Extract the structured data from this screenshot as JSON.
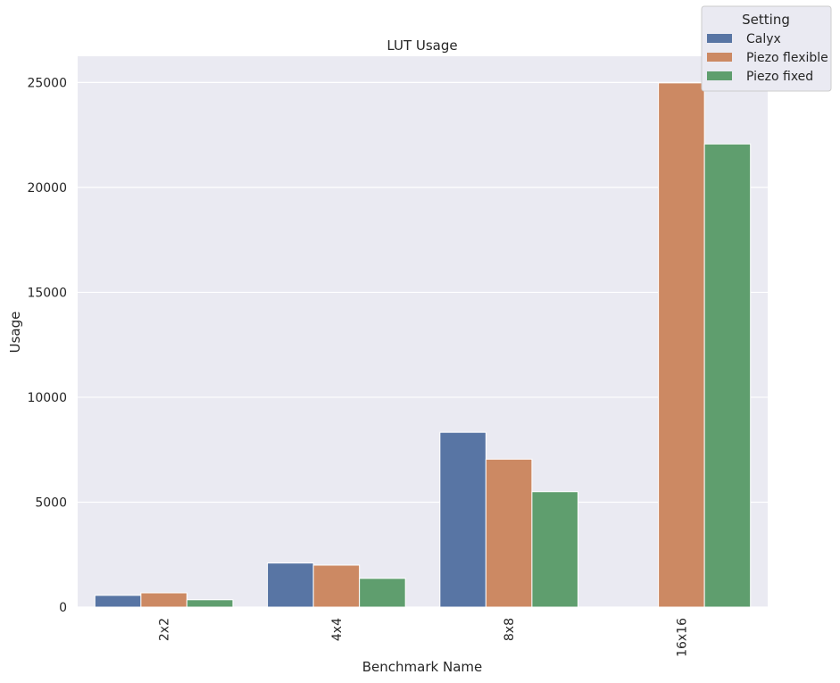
{
  "chart_data": {
    "type": "bar",
    "title": "LUT Usage",
    "xlabel": "Benchmark Name",
    "ylabel": "Usage",
    "categories": [
      "2x2",
      "4x4",
      "8x8",
      "16x16"
    ],
    "series": [
      {
        "name": "Calyx",
        "color": "#5875a4",
        "values": [
          560,
          2100,
          8330,
          0
        ]
      },
      {
        "name": "Piezo flexible",
        "color": "#cc8963",
        "values": [
          680,
          2000,
          7050,
          24980
        ]
      },
      {
        "name": "Piezo fixed",
        "color": "#5f9e6e",
        "values": [
          350,
          1370,
          5500,
          22070
        ]
      }
    ],
    "ylim": [
      0,
      26250
    ],
    "yticks": [
      0,
      5000,
      10000,
      15000,
      20000,
      25000
    ],
    "grid": true,
    "legend": {
      "title": "Setting",
      "placement": "top-right"
    }
  }
}
